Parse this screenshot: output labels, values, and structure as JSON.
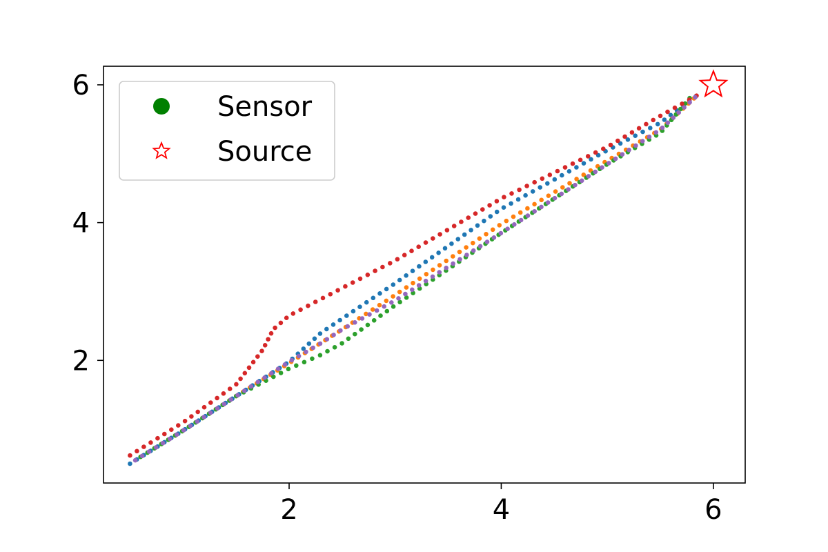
{
  "chart_data": {
    "type": "scatter",
    "title": "",
    "xlabel": "",
    "ylabel": "",
    "xlim": [
      0.25,
      6.3
    ],
    "ylim": [
      0.22,
      6.27
    ],
    "xticks": [
      2,
      4,
      6
    ],
    "yticks": [
      2,
      4,
      6
    ],
    "xtick_labels": [
      "2",
      "4",
      "6"
    ],
    "ytick_labels": [
      "2",
      "4",
      "6"
    ],
    "grid": false,
    "legend_position": "top-left",
    "legend": [
      {
        "label": "Sensor",
        "marker": "circle",
        "color": "#008000"
      },
      {
        "label": "Source",
        "marker": "star",
        "color": "#ff0000"
      }
    ],
    "source": {
      "x": 6.0,
      "y": 6.0,
      "color": "#ff0000"
    },
    "series": [
      {
        "color": "#1f77b4",
        "path": [
          [
            0.5,
            0.5
          ],
          [
            1.0,
            0.98
          ],
          [
            1.5,
            1.48
          ],
          [
            2.0,
            1.98
          ],
          [
            2.3,
            2.4
          ],
          [
            3.0,
            3.12
          ],
          [
            4.0,
            4.2
          ],
          [
            5.0,
            5.05
          ],
          [
            5.5,
            5.45
          ],
          [
            5.85,
            5.85
          ]
        ]
      },
      {
        "color": "#ff7f0e",
        "path": [
          [
            0.6,
            0.6
          ],
          [
            1.0,
            0.98
          ],
          [
            1.5,
            1.48
          ],
          [
            2.0,
            1.96
          ],
          [
            2.5,
            2.45
          ],
          [
            3.0,
            2.95
          ],
          [
            4.0,
            3.98
          ],
          [
            5.0,
            4.9
          ],
          [
            5.5,
            5.35
          ],
          [
            5.85,
            5.85
          ]
        ]
      },
      {
        "color": "#2ca02c",
        "path": [
          [
            0.6,
            0.6
          ],
          [
            1.0,
            0.98
          ],
          [
            1.5,
            1.48
          ],
          [
            2.0,
            1.88
          ],
          [
            2.3,
            2.08
          ],
          [
            2.5,
            2.25
          ],
          [
            3.0,
            2.8
          ],
          [
            4.0,
            3.85
          ],
          [
            5.0,
            4.85
          ],
          [
            5.5,
            5.3
          ],
          [
            5.8,
            5.85
          ]
        ]
      },
      {
        "color": "#d62728",
        "path": [
          [
            0.5,
            0.62
          ],
          [
            1.0,
            1.1
          ],
          [
            1.5,
            1.65
          ],
          [
            1.75,
            2.15
          ],
          [
            1.85,
            2.45
          ],
          [
            2.0,
            2.65
          ],
          [
            2.5,
            3.05
          ],
          [
            3.0,
            3.45
          ],
          [
            4.0,
            4.35
          ],
          [
            5.0,
            5.1
          ],
          [
            5.5,
            5.55
          ],
          [
            5.85,
            5.85
          ]
        ]
      },
      {
        "color": "#9467bd",
        "path": [
          [
            0.55,
            0.55
          ],
          [
            1.0,
            0.98
          ],
          [
            1.5,
            1.48
          ],
          [
            2.0,
            1.98
          ],
          [
            2.3,
            2.25
          ],
          [
            2.5,
            2.45
          ],
          [
            3.0,
            2.87
          ],
          [
            4.0,
            3.85
          ],
          [
            5.0,
            4.85
          ],
          [
            5.5,
            5.35
          ],
          [
            5.85,
            5.85
          ]
        ]
      }
    ]
  }
}
